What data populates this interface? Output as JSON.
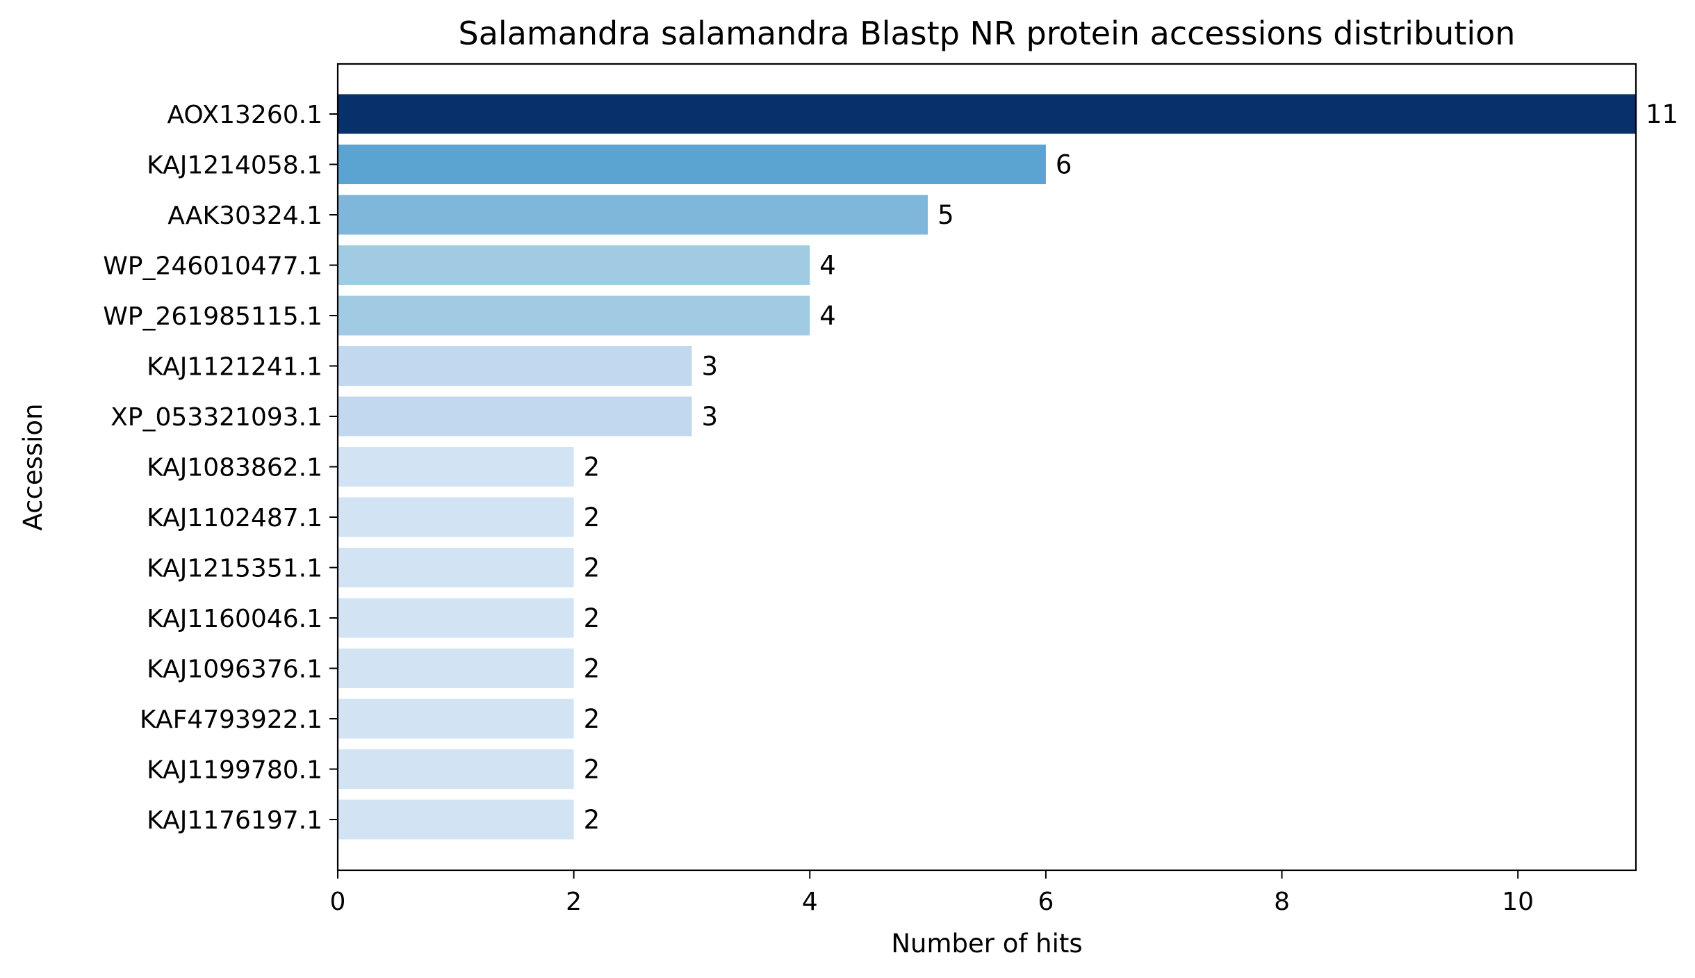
{
  "chart_data": {
    "type": "bar",
    "orientation": "horizontal",
    "title": "Salamandra salamandra Blastp NR protein accessions distribution",
    "xlabel": "Number of hits",
    "ylabel": "Accession",
    "xlim": [
      0,
      11
    ],
    "xticks": [
      0,
      2,
      4,
      6,
      8,
      10
    ],
    "grid": false,
    "categories": [
      "AOX13260.1",
      "KAJ1214058.1",
      "AAK30324.1",
      "WP_246010477.1",
      "WP_261985115.1",
      "KAJ1121241.1",
      "XP_053321093.1",
      "KAJ1083862.1",
      "KAJ1102487.1",
      "KAJ1215351.1",
      "KAJ1160046.1",
      "KAJ1096376.1",
      "KAF4793922.1",
      "KAJ1199780.1",
      "KAJ1176197.1"
    ],
    "values": [
      11,
      6,
      5,
      4,
      4,
      3,
      3,
      2,
      2,
      2,
      2,
      2,
      2,
      2,
      2
    ],
    "colors": [
      "#08306b",
      "#5ba3d0",
      "#7fb7da",
      "#a1cbe2",
      "#a1cbe2",
      "#c1d8ee",
      "#c1d8ee",
      "#d2e3f3",
      "#d2e3f3",
      "#d2e3f3",
      "#d2e3f3",
      "#d2e3f3",
      "#d2e3f3",
      "#d2e3f3",
      "#d2e3f3"
    ]
  }
}
